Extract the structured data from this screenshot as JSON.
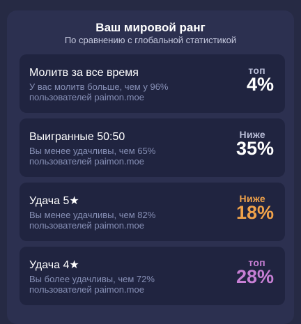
{
  "header": {
    "title": "Ваш мировой ранг",
    "subtitle": "По сравнению с глобальной статистикой"
  },
  "cards": [
    {
      "title": "Молитв за все время",
      "description": "У вас молитв больше, чем у 96% пользователей paimon.moe",
      "rank_label": "топ",
      "rank_value": "4%",
      "label_color": "#b8bcd6",
      "value_color": "#ffffff"
    },
    {
      "title": "Выигранные 50:50",
      "description": "Вы менее удачливы, чем 65% пользователей paimon.moe",
      "rank_label": "Ниже",
      "rank_value": "35%",
      "label_color": "#b8bcd6",
      "value_color": "#ffffff"
    },
    {
      "title": "Удача 5★",
      "description": "Вы менее удачливы, чем 82% пользователей paimon.moe",
      "rank_label": "Ниже",
      "rank_value": "18%",
      "label_color": "#f0a24a",
      "value_color": "#f0a24a"
    },
    {
      "title": "Удача 4★",
      "description": "Вы более удачливы, чем 72% пользователей paimon.moe",
      "rank_label": "топ",
      "rank_value": "28%",
      "label_color": "#c77fd4",
      "value_color": "#c77fd4"
    }
  ]
}
